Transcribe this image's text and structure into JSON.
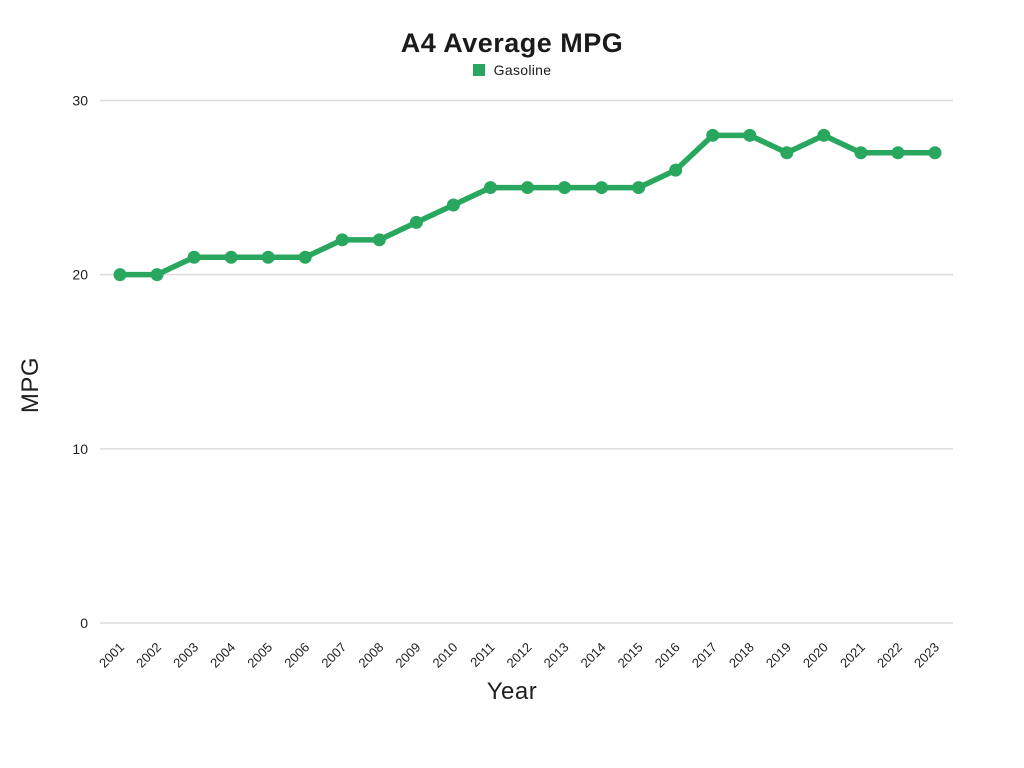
{
  "title": "A4 Average MPG",
  "legend": {
    "items": [
      {
        "label": "Gasoline",
        "color": "#29a75f"
      }
    ]
  },
  "axes": {
    "x_label": "Year",
    "y_label": "MPG"
  },
  "colors": {
    "line": "#29a75f",
    "marker": "#29a75f",
    "gridline": "#dcdcdc",
    "text": "#1f1f1f"
  },
  "chart_data": {
    "type": "line",
    "title": "A4 Average MPG",
    "xlabel": "Year",
    "ylabel": "MPG",
    "legend_position": "top-center",
    "grid": true,
    "ylim": [
      0,
      30
    ],
    "yticks": [
      0,
      10,
      20,
      30
    ],
    "categories": [
      "2001",
      "2002",
      "2003",
      "2004",
      "2005",
      "2006",
      "2007",
      "2008",
      "2009",
      "2010",
      "2011",
      "2012",
      "2013",
      "2014",
      "2015",
      "2016",
      "2017",
      "2018",
      "2019",
      "2020",
      "2021",
      "2022",
      "2023"
    ],
    "series": [
      {
        "name": "Gasoline",
        "color": "#29a75f",
        "values": [
          20,
          20,
          21,
          21,
          21,
          21,
          22,
          22,
          23,
          24,
          25,
          25,
          25,
          25,
          25,
          26,
          28,
          28,
          27,
          28,
          27,
          27,
          27
        ]
      }
    ]
  }
}
